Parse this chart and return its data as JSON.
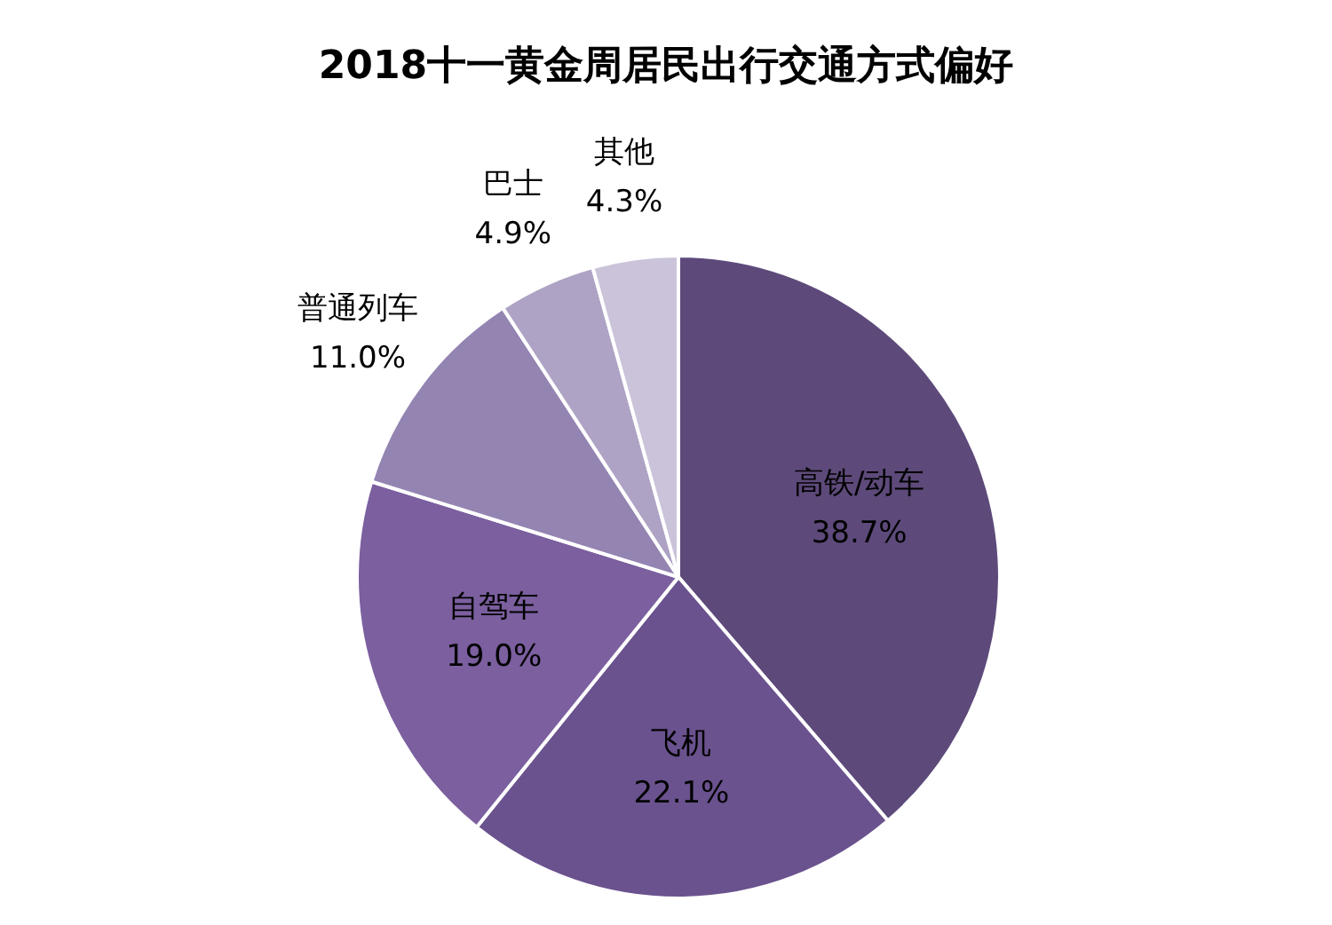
{
  "chart_data": {
    "type": "pie",
    "title": "2018十一黄金周居民出行交通方式偏好",
    "categories": [
      "高铁/动车",
      "飞机",
      "自驾车",
      "普通列车",
      "巴士",
      "其他"
    ],
    "values": [
      38.7,
      22.1,
      19.0,
      11.0,
      4.9,
      4.3
    ],
    "value_labels": [
      "38.7%",
      "22.1%",
      "19.0%",
      "11.0%",
      "4.9%",
      "4.3%"
    ],
    "colors": [
      "#5d4a7a",
      "#6a528e",
      "#7b5f9f",
      "#9484b2",
      "#aea3c4",
      "#cbc3d9"
    ],
    "legend": false
  }
}
